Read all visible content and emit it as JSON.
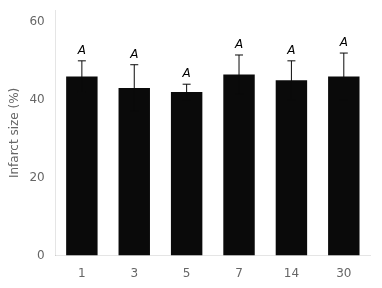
{
  "chart_data": {
    "type": "bar",
    "categories": [
      "1",
      "3",
      "5",
      "7",
      "14",
      "30"
    ],
    "values": [
      46.0,
      43.0,
      42.0,
      46.5,
      45.0,
      46.0
    ],
    "errors": [
      4.0,
      6.0,
      2.0,
      5.0,
      5.0,
      6.0
    ],
    "color": "#0a0a0a",
    "y_label": "Infarct size (%)",
    "ylim": [
      0,
      63
    ],
    "yticks": [
      0,
      20,
      40,
      60
    ],
    "grid": false,
    "annotations": [
      {
        "category": "1",
        "text": "A"
      },
      {
        "category": "3",
        "text": "A"
      },
      {
        "category": "5",
        "text": "A"
      },
      {
        "category": "7",
        "text": "A"
      },
      {
        "category": "14",
        "text": "A"
      },
      {
        "category": "30",
        "text": "A"
      }
    ]
  }
}
